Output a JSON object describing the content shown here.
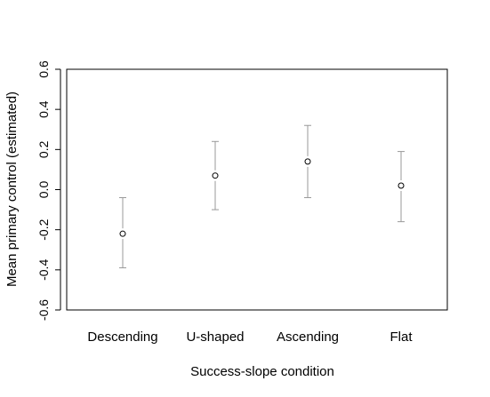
{
  "chart_data": {
    "type": "scatter",
    "categories": [
      "Descending",
      "U-shaped",
      "Ascending",
      "Flat"
    ],
    "series": [
      {
        "values": [
          -0.22,
          0.07,
          0.14,
          0.02
        ],
        "lower": [
          -0.39,
          -0.1,
          -0.04,
          -0.16
        ],
        "upper": [
          -0.04,
          0.24,
          0.32,
          0.19
        ]
      }
    ],
    "xlabel": "Success-slope condition",
    "ylabel": "Mean primary control (estimated)",
    "ylim": [
      -0.6,
      0.6
    ],
    "yticks": [
      -0.6,
      -0.4,
      -0.2,
      0.0,
      0.2,
      0.4,
      0.6
    ],
    "ytick_labels": [
      "-0.6",
      "-0.4",
      "-0.2",
      "0.0",
      "0.2",
      "0.4",
      "0.6"
    ],
    "grid": false,
    "error_bars": true,
    "colors": {
      "points": "#000000",
      "error_bars": "#999999",
      "frame": "#000000"
    }
  }
}
